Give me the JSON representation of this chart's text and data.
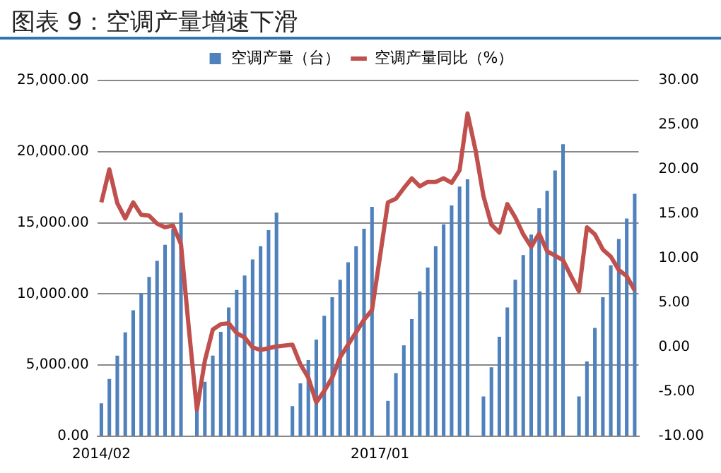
{
  "chart_data": {
    "type": "bar",
    "title": "图表 9：空调产量增速下滑",
    "categories": [
      "2014/02",
      null,
      null,
      null,
      null,
      null,
      null,
      null,
      null,
      null,
      null,
      null,
      null,
      null,
      null,
      null,
      null,
      null,
      null,
      null,
      null,
      null,
      null,
      null,
      null,
      null,
      null,
      null,
      null,
      null,
      null,
      null,
      null,
      null,
      null,
      "2017/01",
      null,
      null,
      null,
      null,
      null,
      null,
      null,
      null,
      null,
      null,
      null,
      null,
      null,
      null,
      null,
      null,
      null,
      null,
      null,
      null,
      null,
      null,
      null,
      null,
      null,
      null,
      null,
      null,
      null,
      null,
      null,
      null
    ],
    "series": [
      {
        "name": "空调产量（台）",
        "color": "#4f81bd",
        "values": [
          2320,
          4030,
          5670,
          7310,
          8850,
          10070,
          11200,
          12330,
          13460,
          14580,
          15710,
          null,
          1880,
          3830,
          5670,
          7340,
          9050,
          10280,
          11300,
          12430,
          13350,
          14480,
          15710,
          null,
          2120,
          3720,
          5360,
          6800,
          8470,
          9770,
          11000,
          12230,
          13350,
          14580,
          16120,
          null,
          2490,
          4440,
          6390,
          8230,
          10180,
          11850,
          13350,
          14890,
          16220,
          17550,
          18060,
          null,
          2800,
          4850,
          7000,
          9050,
          11000,
          12740,
          14170,
          16020,
          17250,
          18680,
          20520,
          null,
          2800,
          5260,
          7620,
          9770,
          12020,
          13860,
          15300,
          17040
        ]
      },
      {
        "name": "空调产量同比（%）",
        "type": "line",
        "axis": "y2",
        "color": "#c0504d",
        "values": [
          16.3,
          20.0,
          16.2,
          14.5,
          16.3,
          14.9,
          14.8,
          13.9,
          13.5,
          13.7,
          11.6,
          2.0,
          -7.0,
          -1.5,
          2.0,
          2.6,
          2.7,
          1.6,
          1.1,
          0.0,
          -0.3,
          -0.1,
          0.1,
          0.2,
          0.3,
          -1.9,
          -3.4,
          -6.2,
          -4.9,
          -3.4,
          -1.1,
          0.3,
          1.7,
          3.1,
          4.2,
          10.2,
          16.3,
          16.7,
          17.9,
          19.0,
          18.1,
          18.6,
          18.6,
          19.0,
          18.5,
          19.9,
          26.3,
          22.2,
          17.0,
          13.8,
          12.9,
          16.1,
          14.6,
          12.7,
          11.3,
          12.8,
          10.8,
          10.3,
          9.8,
          8.0,
          6.3,
          13.5,
          12.7,
          11.0,
          10.2,
          8.7,
          8.0,
          6.4
        ]
      }
    ],
    "ylim": [
      0,
      25000
    ],
    "yticks": [
      {
        "value": 0,
        "label": "0.00"
      },
      {
        "value": 5000,
        "label": "5,000.00"
      },
      {
        "value": 10000,
        "label": "10,000.00"
      },
      {
        "value": 15000,
        "label": "15,000.00"
      },
      {
        "value": 20000,
        "label": "20,000.00"
      },
      {
        "value": 25000,
        "label": "25,000.00"
      }
    ],
    "y2lim": [
      -10,
      30
    ],
    "y2ticks": [
      {
        "value": -10,
        "label": "-10.00"
      },
      {
        "value": -5,
        "label": "-5.00"
      },
      {
        "value": 0,
        "label": "0.00"
      },
      {
        "value": 5,
        "label": "5.00"
      },
      {
        "value": 10,
        "label": "10.00"
      },
      {
        "value": 15,
        "label": "15.00"
      },
      {
        "value": 20,
        "label": "20.00"
      },
      {
        "value": 25,
        "label": "25.00"
      },
      {
        "value": 30,
        "label": "30.00"
      }
    ],
    "grid": "y",
    "legend": "top",
    "marker": "none",
    "line_style": "solid"
  }
}
